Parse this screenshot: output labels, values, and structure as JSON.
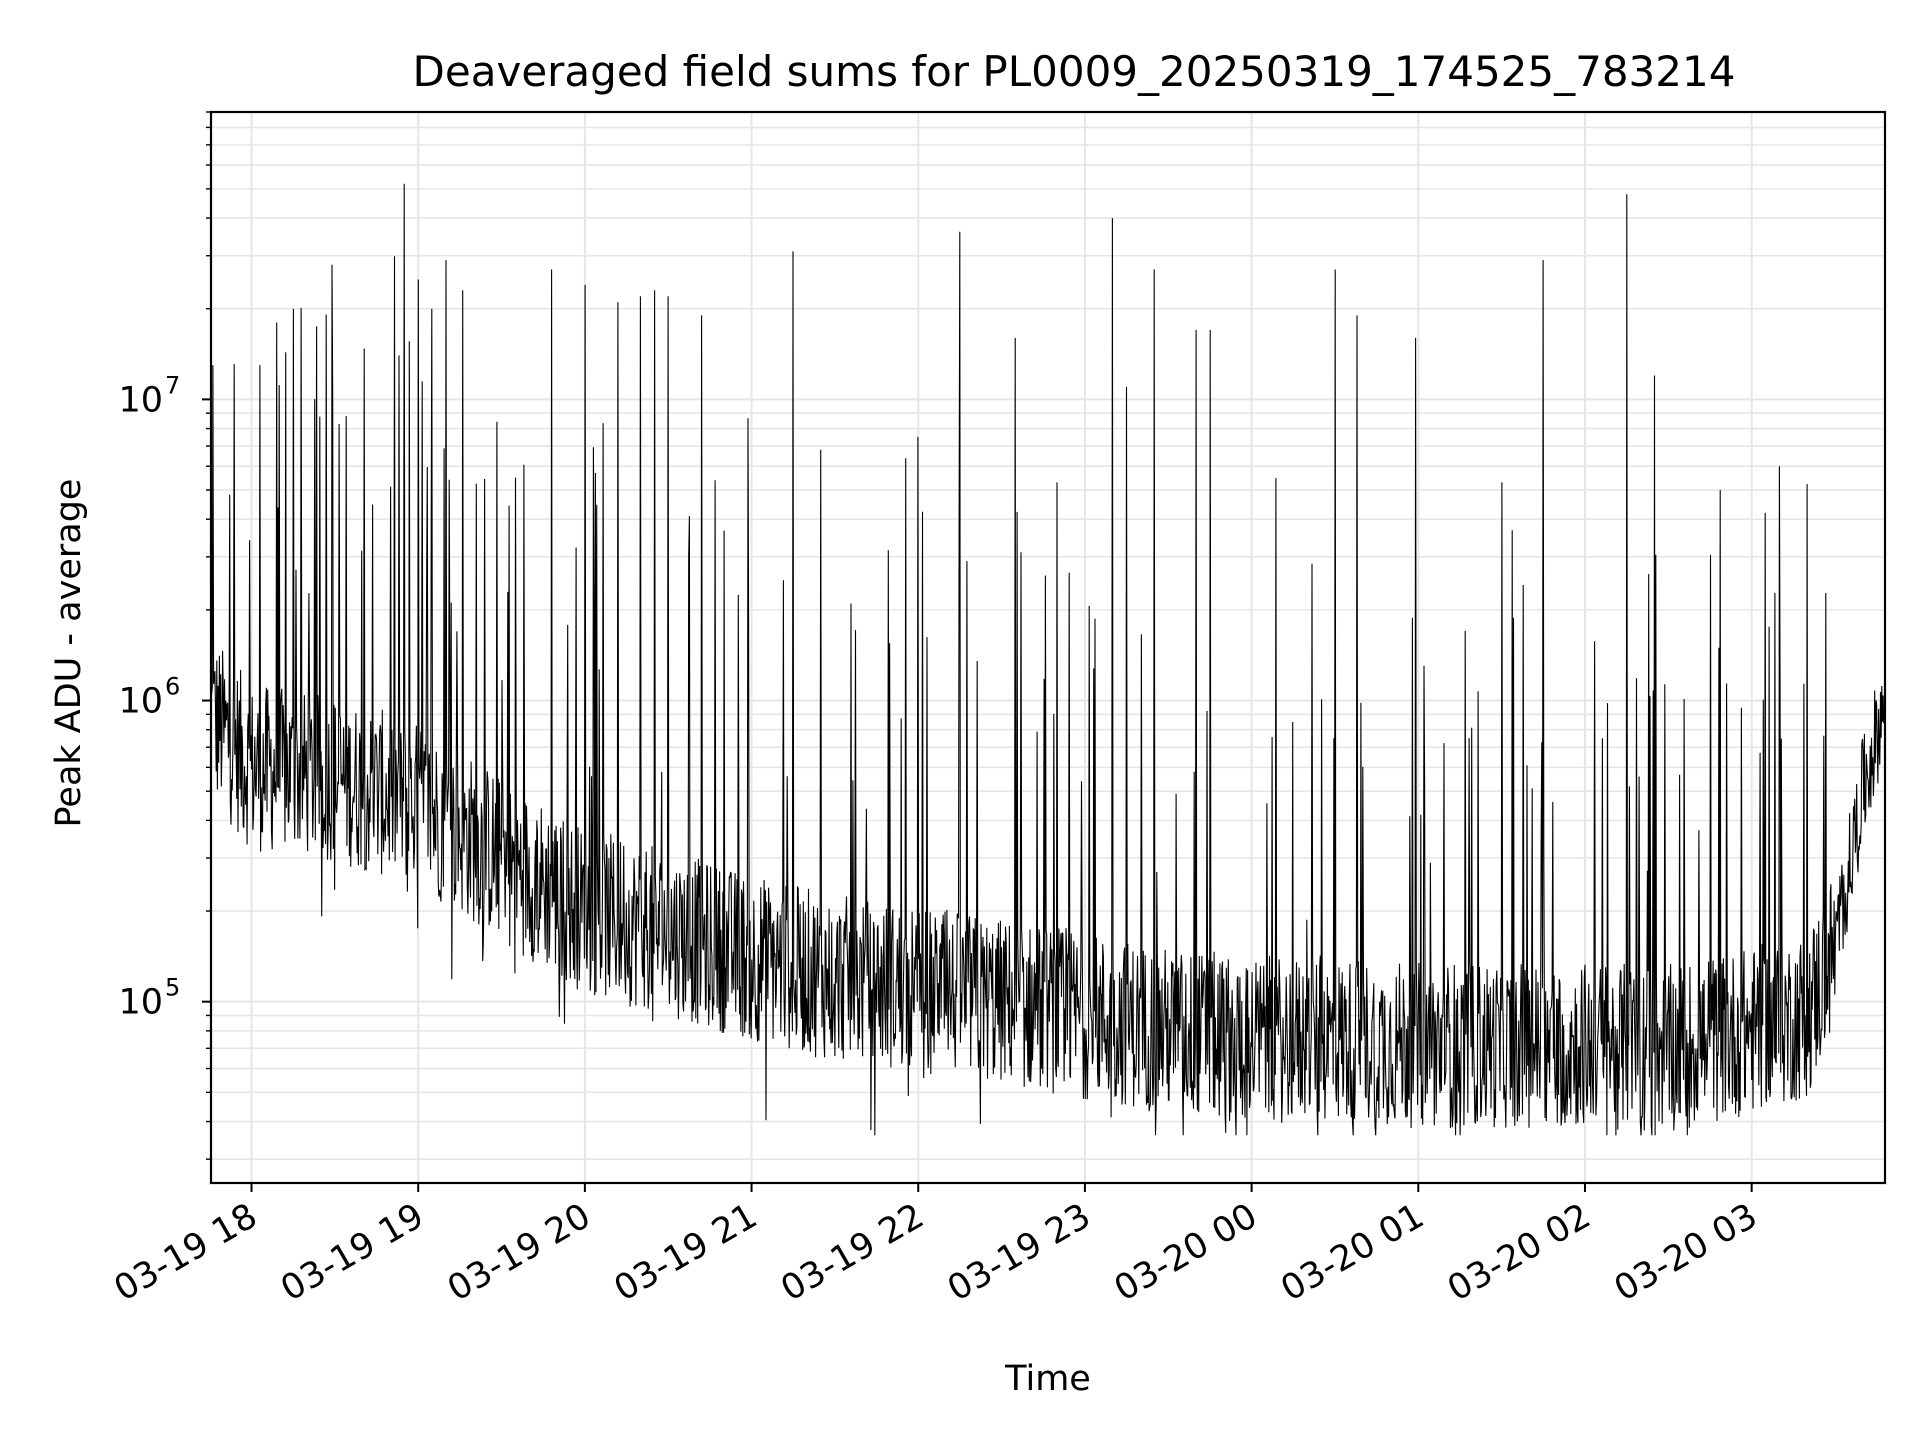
{
  "chart_data": {
    "type": "line",
    "title": "Deaveraged field sums for PL0009_20250319_174525_783214",
    "xlabel": "Time",
    "ylabel": "Peak ADU - average",
    "yscale": "log",
    "ylim": [
      25000,
      90000000
    ],
    "xlim": [
      "2025-03-19 17:45:25",
      "2025-03-20 03:48:00"
    ],
    "grid": true,
    "line_color": "#000000",
    "grid_color": "#e6e6e6",
    "x_ticks": [
      "03-19 18",
      "03-19 19",
      "03-19 20",
      "03-19 21",
      "03-19 22",
      "03-19 23",
      "03-20 00",
      "03-20 01",
      "03-20 02",
      "03-20 03"
    ],
    "y_ticks": [
      {
        "base": "10",
        "exponent": "5",
        "value": 100000
      },
      {
        "base": "10",
        "exponent": "6",
        "value": 1000000
      },
      {
        "base": "10",
        "exponent": "7",
        "value": 10000000
      }
    ],
    "series": [
      {
        "values_description": "noisy time series of peak ADU minus average, sampled roughly every few seconds",
        "baseline": [
          {
            "time": "03-19 17:45",
            "value": 900000
          },
          {
            "time": "03-19 18:00",
            "value": 600000
          },
          {
            "time": "03-19 18:30",
            "value": 550000
          },
          {
            "time": "03-19 19:00",
            "value": 450000
          },
          {
            "time": "03-19 19:30",
            "value": 300000
          },
          {
            "time": "03-19 20:00",
            "value": 200000
          },
          {
            "time": "03-19 20:30",
            "value": 170000
          },
          {
            "time": "03-19 21:00",
            "value": 140000
          },
          {
            "time": "03-19 21:30",
            "value": 120000
          },
          {
            "time": "03-19 22:00",
            "value": 110000
          },
          {
            "time": "03-19 22:30",
            "value": 100000
          },
          {
            "time": "03-19 23:00",
            "value": 90000
          },
          {
            "time": "03-19 23:30",
            "value": 80000
          },
          {
            "time": "03-20 00:00",
            "value": 75000
          },
          {
            "time": "03-20 00:30",
            "value": 75000
          },
          {
            "time": "03-20 01:00",
            "value": 72000
          },
          {
            "time": "03-20 01:30",
            "value": 72000
          },
          {
            "time": "03-20 02:00",
            "value": 72000
          },
          {
            "time": "03-20 02:30",
            "value": 70000
          },
          {
            "time": "03-20 03:00",
            "value": 80000
          },
          {
            "time": "03-20 03:20",
            "value": 90000
          },
          {
            "time": "03-20 03:30",
            "value": 150000
          },
          {
            "time": "03-20 03:40",
            "value": 500000
          },
          {
            "time": "03-20 03:48",
            "value": 1000000
          }
        ],
        "spikes": [
          {
            "time": "03-19 17:46",
            "value": 13000000
          },
          {
            "time": "03-19 18:03",
            "value": 13000000
          },
          {
            "time": "03-19 18:09",
            "value": 18000000
          },
          {
            "time": "03-19 18:15",
            "value": 20000000
          },
          {
            "time": "03-19 18:29",
            "value": 28000000
          },
          {
            "time": "03-19 18:34",
            "value": 8800000
          },
          {
            "time": "03-19 18:53",
            "value": 14000000
          },
          {
            "time": "03-19 18:55",
            "value": 52000000
          },
          {
            "time": "03-19 19:00",
            "value": 25000000
          },
          {
            "time": "03-19 19:05",
            "value": 20000000
          },
          {
            "time": "03-19 19:10",
            "value": 29000000
          },
          {
            "time": "03-19 19:16",
            "value": 23000000
          },
          {
            "time": "03-19 19:35",
            "value": 5500000
          },
          {
            "time": "03-19 19:48",
            "value": 27000000
          },
          {
            "time": "03-19 20:00",
            "value": 24000000
          },
          {
            "time": "03-19 20:12",
            "value": 21000000
          },
          {
            "time": "03-19 20:20",
            "value": 22000000
          },
          {
            "time": "03-19 20:25",
            "value": 23000000
          },
          {
            "time": "03-19 20:30",
            "value": 22000000
          },
          {
            "time": "03-19 20:42",
            "value": 19000000
          },
          {
            "time": "03-19 21:15",
            "value": 31000000
          },
          {
            "time": "03-19 21:25",
            "value": 6800000
          },
          {
            "time": "03-19 22:00",
            "value": 7500000
          },
          {
            "time": "03-19 22:15",
            "value": 36000000
          },
          {
            "time": "03-19 22:35",
            "value": 16000000
          },
          {
            "time": "03-19 22:50",
            "value": 5300000
          },
          {
            "time": "03-19 23:10",
            "value": 40000000
          },
          {
            "time": "03-19 23:15",
            "value": 11000000
          },
          {
            "time": "03-19 23:25",
            "value": 27000000
          },
          {
            "time": "03-19 23:40",
            "value": 17000000
          },
          {
            "time": "03-19 23:45",
            "value": 17000000
          },
          {
            "time": "03-20 00:30",
            "value": 27000000
          },
          {
            "time": "03-20 00:38",
            "value": 19000000
          },
          {
            "time": "03-20 00:59",
            "value": 16000000
          },
          {
            "time": "03-20 01:30",
            "value": 5300000
          },
          {
            "time": "03-20 01:45",
            "value": 29000000
          },
          {
            "time": "03-20 02:15",
            "value": 48000000
          },
          {
            "time": "03-20 02:25",
            "value": 12000000
          },
          {
            "time": "03-20 03:05",
            "value": 4200000
          },
          {
            "time": "03-20 03:10",
            "value": 6000000
          }
        ]
      }
    ]
  }
}
